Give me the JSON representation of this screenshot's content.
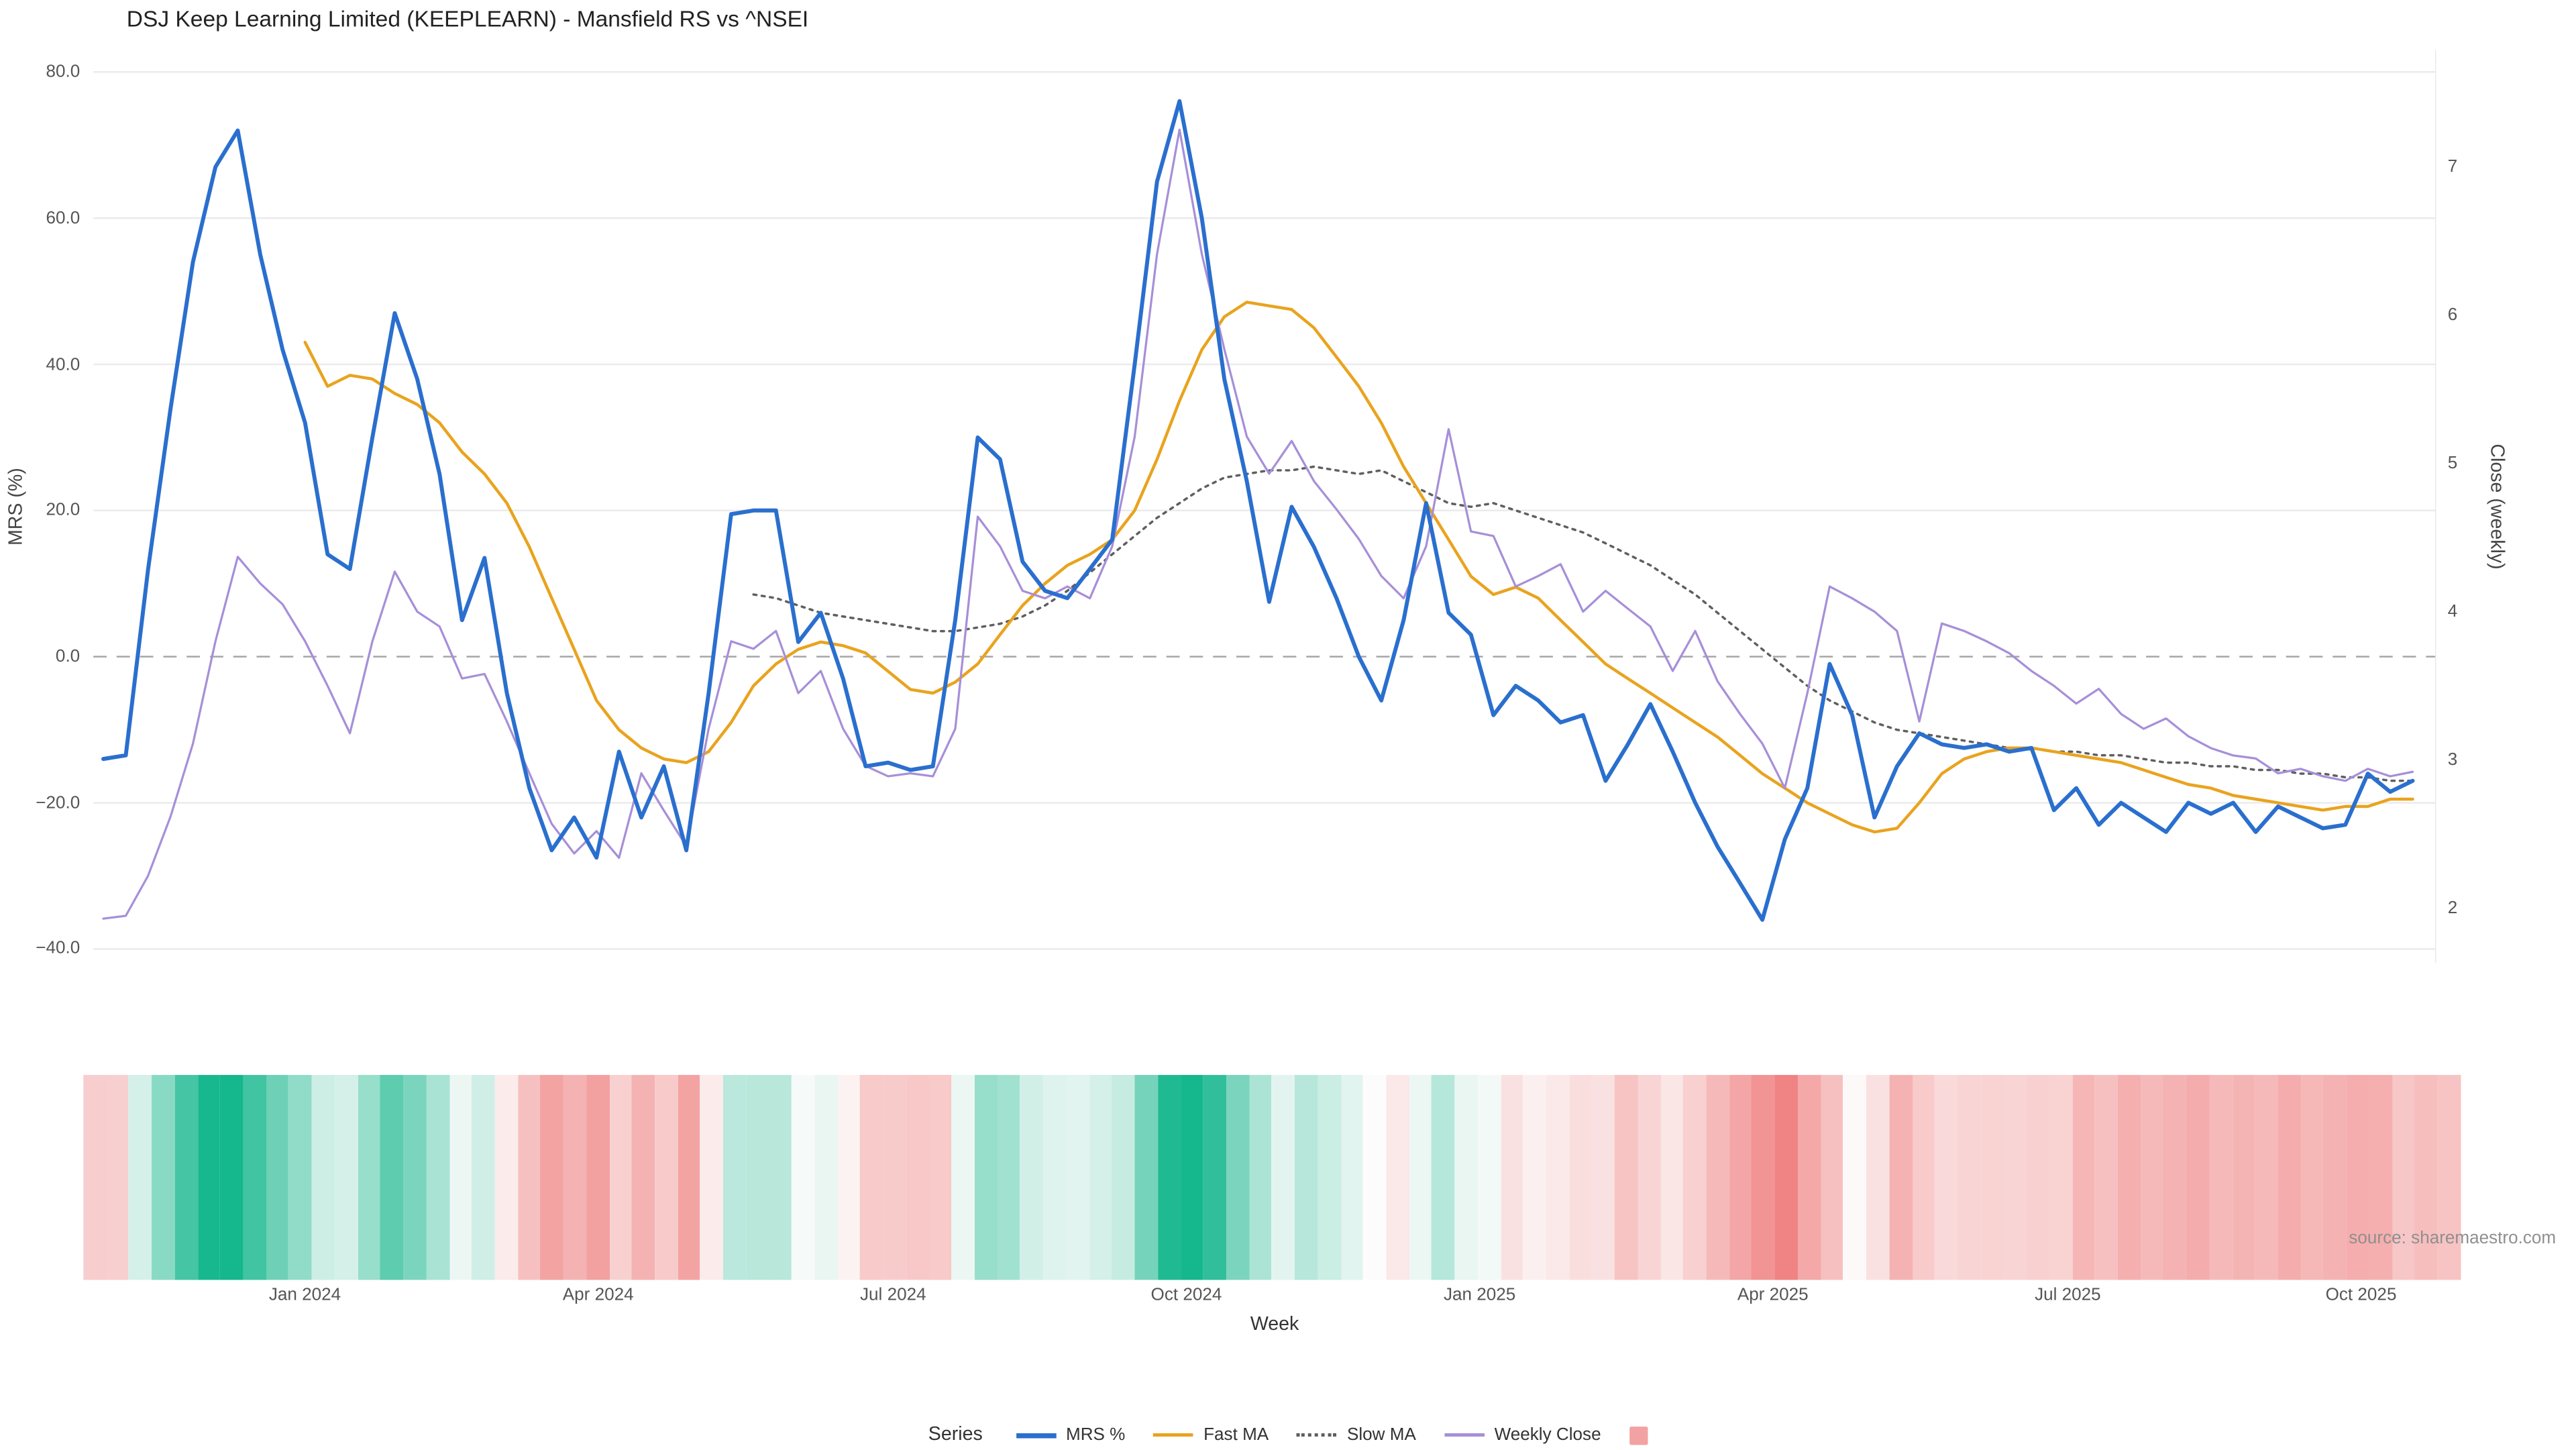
{
  "title": "DSJ Keep Learning Limited (KEEPLEARN) - Mansfield RS vs ^NSEI",
  "source": "source: sharemaestro.com",
  "axes": {
    "x_label": "Week",
    "y_left_label": "MRS (%)",
    "y_right_label": "Close (weekly)",
    "y_left_ticks": [
      "80.0",
      "60.0",
      "40.0",
      "20.0",
      "0.0",
      "−20.0",
      "−40.0"
    ],
    "y_right_ticks": [
      "7",
      "6",
      "5",
      "4",
      "3",
      "2"
    ],
    "x_ticks": [
      "Jan 2024",
      "Apr 2024",
      "Jul 2024",
      "Oct 2024",
      "Jan 2025",
      "Apr 2025",
      "Jul 2025",
      "Oct 2025"
    ]
  },
  "legend": {
    "title": "Series"
  },
  "chart_data": {
    "type": "line",
    "title": "DSJ Keep Learning Limited (KEEPLEARN) - Mansfield RS vs ^NSEI",
    "xlabel": "Week",
    "ylabel_left": "MRS (%)",
    "ylabel_right": "Close (weekly)",
    "ylim_left": [
      -40,
      80
    ],
    "ylim_right": [
      2,
      7
    ],
    "grid": true,
    "zero_line": true,
    "legend_position": "bottom-center",
    "x_tick_labels": [
      "Jan 2024",
      "Apr 2024",
      "Jul 2024",
      "Oct 2024",
      "Jan 2025",
      "Apr 2025",
      "Jul 2025",
      "Oct 2025"
    ],
    "x_tick_weeks": [
      9,
      22.1,
      35.2,
      48.3,
      61.4,
      74.5,
      87.6,
      100.7
    ],
    "y_left_tick_values": [
      80,
      60,
      40,
      20,
      0,
      -20,
      -40
    ],
    "y_right_tick_values": [
      7,
      6,
      5,
      4,
      3,
      2
    ],
    "weeks_total": 104,
    "series": [
      {
        "name": "MRS %",
        "axis": "left",
        "color": "#2a6fce",
        "style": "solid",
        "width": 2.4,
        "values": [
          -14,
          -13.5,
          12,
          34,
          54,
          67,
          72,
          55,
          42,
          32,
          14,
          12,
          30,
          47,
          38,
          25,
          5,
          13.5,
          -5,
          -18,
          -26.5,
          -22,
          -27.5,
          -13,
          -22,
          -15,
          -26.5,
          -5,
          19.5,
          20,
          20,
          2,
          6,
          -3,
          -15,
          -14.5,
          -15.5,
          -15,
          5,
          30,
          27,
          13,
          9,
          8,
          12,
          16,
          40,
          65,
          76,
          60,
          38,
          24,
          7.5,
          20.5,
          15,
          8,
          0,
          -6,
          5,
          21,
          6,
          3,
          -8,
          -4,
          -6,
          -9,
          -8,
          -17,
          -12,
          -6.5,
          -13,
          -20,
          -26,
          -31,
          -36,
          -25,
          -18,
          -1,
          -8,
          -22,
          -15,
          -10.5,
          -12,
          -12.5,
          -12,
          -13,
          -12.5,
          -21,
          -18,
          -23,
          -20,
          -22,
          -24,
          -20,
          -21.5,
          -20,
          -24,
          -20.5,
          -22,
          -23.5,
          -23,
          -16,
          -18.5,
          -17
        ]
      },
      {
        "name": "Fast MA",
        "axis": "left",
        "color": "#e9a31e",
        "style": "solid",
        "width": 1.8,
        "values": [
          null,
          null,
          null,
          null,
          null,
          null,
          null,
          null,
          null,
          43,
          37,
          38.5,
          38,
          36,
          34.5,
          32,
          28,
          25,
          21,
          15,
          8,
          1,
          -6,
          -10,
          -12.5,
          -14,
          -14.5,
          -13,
          -9,
          -4,
          -1,
          1,
          2,
          1.5,
          0.5,
          -2,
          -4.5,
          -5,
          -3.5,
          -1,
          3,
          7,
          10,
          12.5,
          14,
          16,
          20,
          27,
          35,
          42,
          46.5,
          48.5,
          48,
          47.5,
          45,
          41,
          37,
          32,
          26,
          21,
          16,
          11,
          8.5,
          9.5,
          8,
          5,
          2,
          -1,
          -3,
          -5,
          -7,
          -9,
          -11,
          -13.5,
          -16,
          -18,
          -20,
          -21.5,
          -23,
          -24,
          -23.5,
          -20,
          -16,
          -14,
          -13,
          -12.5,
          -12.5,
          -13,
          -13.5,
          -14,
          -14.5,
          -15.5,
          -16.5,
          -17.5,
          -18,
          -19,
          -19.5,
          -20,
          -20.5,
          -21,
          -20.5,
          -20.5,
          -19.5,
          -19.5
        ]
      },
      {
        "name": "Slow MA",
        "axis": "left",
        "color": "#5f5f5f",
        "style": "dotted",
        "width": 1.4,
        "values": [
          null,
          null,
          null,
          null,
          null,
          null,
          null,
          null,
          null,
          null,
          null,
          null,
          null,
          null,
          null,
          null,
          null,
          null,
          null,
          null,
          null,
          null,
          null,
          null,
          null,
          null,
          null,
          null,
          null,
          8.5,
          8,
          7,
          6,
          5.5,
          5,
          4.5,
          4,
          3.5,
          3.5,
          4,
          4.5,
          5.5,
          7,
          9,
          11.5,
          14,
          16.5,
          19,
          21,
          23,
          24.5,
          25,
          25.5,
          25.5,
          26,
          25.5,
          25,
          25.5,
          24,
          22.5,
          21,
          20.5,
          21,
          20,
          19,
          18,
          17,
          15.5,
          14,
          12.5,
          10.5,
          8.5,
          6,
          3.5,
          1,
          -1.5,
          -4,
          -6,
          -7.5,
          -9,
          -10,
          -10.5,
          -11,
          -11.5,
          -12,
          -12.5,
          -12.5,
          -13,
          -13,
          -13.5,
          -13.5,
          -14,
          -14.5,
          -14.5,
          -15,
          -15,
          -15.5,
          -15.5,
          -16,
          -16,
          -16.5,
          -16.5,
          -17,
          -17
        ]
      },
      {
        "name": "Weekly Close",
        "axis": "right",
        "color": "#a78fd8",
        "style": "solid",
        "width": 1.3,
        "values": [
          1.93,
          1.95,
          2.22,
          2.62,
          3.11,
          3.8,
          4.37,
          4.19,
          4.05,
          3.8,
          3.5,
          3.18,
          3.8,
          4.27,
          4.0,
          3.9,
          3.55,
          3.58,
          3.26,
          2.91,
          2.57,
          2.37,
          2.52,
          2.34,
          2.91,
          2.66,
          2.42,
          3.21,
          3.8,
          3.75,
          3.87,
          3.45,
          3.6,
          3.21,
          2.96,
          2.89,
          2.91,
          2.89,
          3.21,
          4.64,
          4.44,
          4.14,
          4.09,
          4.17,
          4.09,
          4.44,
          5.18,
          6.41,
          7.25,
          6.41,
          5.77,
          5.18,
          4.93,
          5.15,
          4.88,
          4.69,
          4.49,
          4.24,
          4.09,
          4.44,
          5.23,
          4.54,
          4.51,
          4.17,
          4.24,
          4.32,
          4.0,
          4.14,
          4.02,
          3.9,
          3.6,
          3.87,
          3.53,
          3.31,
          3.11,
          2.81,
          3.45,
          4.17,
          4.09,
          4.0,
          3.87,
          3.26,
          3.92,
          3.87,
          3.8,
          3.72,
          3.6,
          3.5,
          3.38,
          3.48,
          3.31,
          3.21,
          3.28,
          3.16,
          3.08,
          3.03,
          3.01,
          2.91,
          2.94,
          2.89,
          2.86,
          2.94,
          2.89,
          2.92
        ]
      }
    ],
    "heatmap": {
      "description": "weekly strength strip derived from MRS % (green positive, red negative)",
      "positive_color": "#15b78d",
      "negative_color": "#ef7676",
      "neutral_color": "#fdfcfc",
      "positive_cap": 68,
      "negative_cap": 40,
      "legend_swatch_color": "#f2a2a2"
    },
    "colors": {
      "mrs": "#2a6fce",
      "fast_ma": "#e9a31e",
      "slow_ma": "#5f5f5f",
      "weekly_close": "#a78fd8",
      "zero_line": "#a6a6a6",
      "gridline": "#ebebeb"
    }
  }
}
